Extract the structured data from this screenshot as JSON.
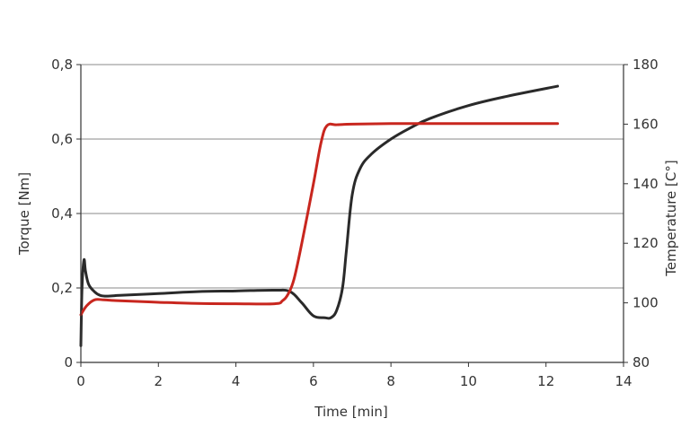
{
  "chart_data": {
    "type": "line",
    "xlabel": "Time [min]",
    "ylabel_left": "Torque [Nm]",
    "ylabel_right": "Temperature [C°]",
    "xlim": [
      0,
      14
    ],
    "ylim_left": [
      0,
      0.8
    ],
    "ylim_right": [
      80,
      180
    ],
    "x_ticks": [
      "0",
      "2",
      "4",
      "6",
      "8",
      "10",
      "12",
      "14"
    ],
    "y_left_ticks": [
      "0",
      "0,2",
      "0,4",
      "0,6",
      "0,8"
    ],
    "y_right_ticks": [
      "80",
      "100",
      "120",
      "140",
      "160",
      "180"
    ],
    "grid": "horizontal",
    "legend": "none",
    "series": [
      {
        "axis": "left",
        "color": "#2a2a2a",
        "x": [
          0.0,
          0.03,
          0.08,
          0.12,
          0.2,
          0.35,
          0.5,
          0.7,
          1.0,
          2.0,
          3.0,
          4.0,
          5.0,
          5.4,
          5.7,
          6.0,
          6.3,
          6.45,
          6.6,
          6.75,
          6.85,
          7.0,
          7.2,
          7.5,
          8.0,
          8.5,
          9.0,
          10.0,
          11.0,
          12.3
        ],
        "values": [
          0.045,
          0.2,
          0.275,
          0.245,
          0.21,
          0.19,
          0.18,
          0.178,
          0.18,
          0.185,
          0.19,
          0.192,
          0.194,
          0.19,
          0.16,
          0.125,
          0.12,
          0.12,
          0.14,
          0.2,
          0.3,
          0.45,
          0.52,
          0.56,
          0.6,
          0.63,
          0.655,
          0.69,
          0.715,
          0.742
        ]
      },
      {
        "axis": "right",
        "color": "#c8261e",
        "x": [
          0.0,
          0.15,
          0.35,
          0.6,
          1.0,
          2.0,
          3.0,
          4.0,
          5.0,
          5.2,
          5.35,
          5.5,
          5.7,
          6.0,
          6.2,
          6.35,
          6.6,
          7.0,
          8.0,
          9.0,
          10.0,
          11.0,
          12.3
        ],
        "values": [
          96,
          99,
          101,
          101,
          100.7,
          100.2,
          99.8,
          99.7,
          99.7,
          100.7,
          103,
          108,
          120,
          140,
          154,
          159.5,
          159.8,
          160,
          160.2,
          160.2,
          160.2,
          160.2,
          160.2
        ]
      }
    ]
  }
}
